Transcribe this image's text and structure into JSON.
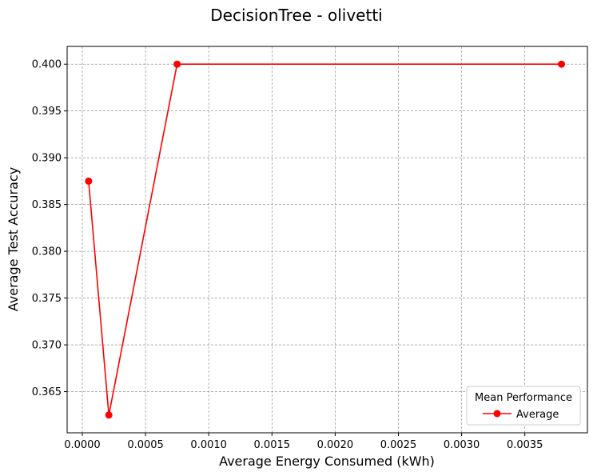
{
  "chart_data": {
    "type": "line",
    "title": "DecisionTree - olivetti",
    "xlabel": "Average Energy Consumed (kWh)",
    "ylabel": "Average Test Accuracy",
    "xlim": [
      -0.00012,
      0.003995
    ],
    "ylim": [
      0.3606,
      0.4019
    ],
    "x_ticks": [
      0.0,
      0.0005,
      0.001,
      0.0015,
      0.002,
      0.0025,
      0.003,
      0.0035
    ],
    "x_tick_labels": [
      "0.0000",
      "0.0005",
      "0.0010",
      "0.0015",
      "0.0020",
      "0.0025",
      "0.0030",
      "0.0035"
    ],
    "y_ticks": [
      0.365,
      0.37,
      0.375,
      0.38,
      0.385,
      0.39,
      0.395,
      0.4
    ],
    "y_tick_labels": [
      "0.365",
      "0.370",
      "0.375",
      "0.380",
      "0.385",
      "0.390",
      "0.395",
      "0.400"
    ],
    "grid": true,
    "legend": {
      "title": "Mean Performance",
      "placement": "lower-right",
      "entries": [
        "Average"
      ]
    },
    "series": [
      {
        "name": "Average",
        "color": "#ff0000",
        "marker": "circle",
        "x": [
          5e-05,
          0.00021,
          0.00075,
          0.00379
        ],
        "y": [
          0.3875,
          0.3625,
          0.4,
          0.4
        ]
      }
    ]
  }
}
